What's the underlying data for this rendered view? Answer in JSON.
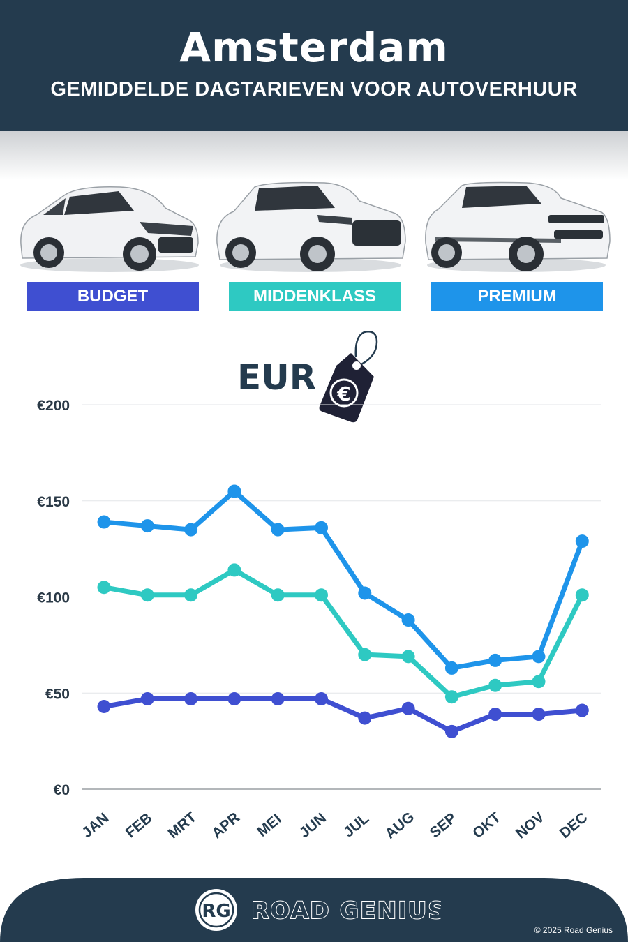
{
  "header": {
    "title": "Amsterdam",
    "subtitle": "GEMIDDELDE DAGTARIEVEN VOOR AUTOVERHUUR"
  },
  "categories": [
    {
      "label": "BUDGET",
      "color": "#3f4fd1"
    },
    {
      "label": "MIDDENKLASS",
      "color": "#2ec9c2"
    },
    {
      "label": "PREMIUM",
      "color": "#1e94ea"
    }
  ],
  "currency_label": "EUR",
  "currency_icon": "euro-price-tag-icon",
  "chart_data": {
    "type": "line",
    "x": [
      "JAN",
      "FEB",
      "MRT",
      "APR",
      "MEI",
      "JUN",
      "JUL",
      "AUG",
      "SEP",
      "OKT",
      "NOV",
      "DEC"
    ],
    "y_ticks": [
      "€0",
      "€50",
      "€100",
      "€150",
      "€200"
    ],
    "ylim": [
      0,
      200
    ],
    "grid": true,
    "series": [
      {
        "name": "PREMIUM",
        "color": "#1e94ea",
        "values": [
          139,
          137,
          135,
          155,
          135,
          136,
          102,
          88,
          63,
          67,
          69,
          129
        ]
      },
      {
        "name": "MIDDENKLASS",
        "color": "#2ec9c2",
        "values": [
          105,
          101,
          101,
          114,
          101,
          101,
          70,
          69,
          48,
          54,
          56,
          101
        ]
      },
      {
        "name": "BUDGET",
        "color": "#3f4fd1",
        "values": [
          43,
          47,
          47,
          47,
          47,
          47,
          37,
          42,
          30,
          39,
          39,
          41
        ]
      }
    ]
  },
  "footer": {
    "brand_initials": "RG",
    "brand_name": "ROAD GENIUS",
    "copyright": "© 2025 Road Genius"
  }
}
